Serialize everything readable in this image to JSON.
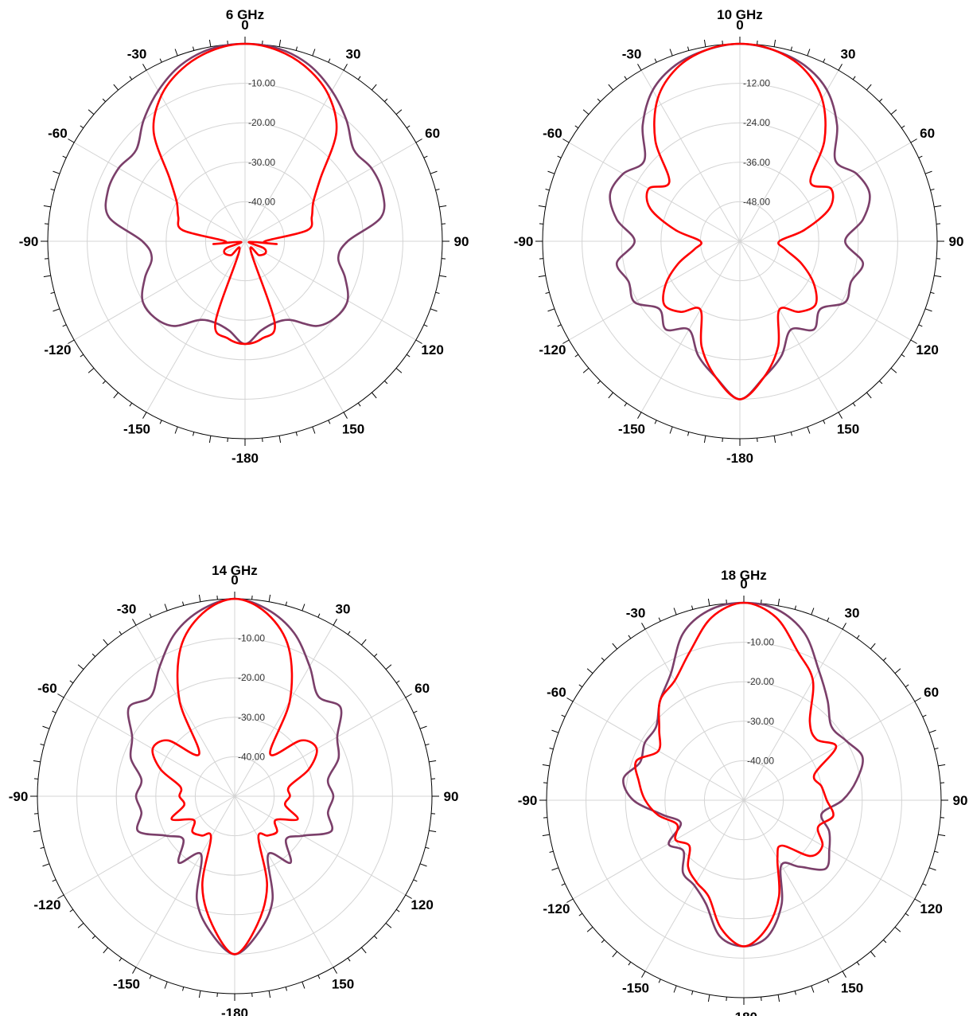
{
  "chart_data": [
    {
      "type": "polar-line",
      "title": "6 GHz",
      "angle_labels": [
        "0",
        "30",
        "60",
        "90",
        "120",
        "150",
        "-180",
        "-150",
        "-120",
        "-90",
        "-60",
        "-30"
      ],
      "radial_labels": [
        "-10.00",
        "-20.00",
        "-30.00",
        "-40.00"
      ],
      "rlim": [
        -50,
        0
      ],
      "grid": true,
      "series": [
        {
          "color": "#7B3F6A",
          "theta": [
            0,
            10,
            20,
            30,
            40,
            50,
            60,
            70,
            80,
            90,
            100,
            110,
            120,
            130,
            140,
            150,
            160,
            170,
            180,
            -170,
            -160,
            -150,
            -140,
            -130,
            -120,
            -110,
            -100,
            -90,
            -80,
            -70,
            -60,
            -50,
            -40,
            -30,
            -20,
            -10
          ],
          "r": [
            0,
            -0.5,
            -2.5,
            -6,
            -10,
            -14,
            -13,
            -13,
            -15,
            -24,
            -26,
            -23,
            -20,
            -20,
            -22,
            -27,
            -28,
            -27,
            -24,
            -27,
            -28,
            -27,
            -22,
            -20,
            -20,
            -23,
            -26,
            -24,
            -15,
            -13,
            -13,
            -14,
            -10,
            -6,
            -2.5,
            -0.5
          ]
        },
        {
          "color": "#FF0000",
          "theta": [
            0,
            10,
            20,
            30,
            40,
            50,
            60,
            70,
            80,
            90,
            95,
            100,
            110,
            120,
            135,
            150,
            160,
            170,
            180,
            -170,
            -160,
            -150,
            -135,
            -120,
            -110,
            -100,
            -95,
            -90,
            -80,
            -70,
            -60,
            -50,
            -40,
            -30,
            -20,
            -10
          ],
          "r": [
            0,
            -1,
            -3.5,
            -7.5,
            -14,
            -25,
            -30,
            -32,
            -34,
            -45,
            -42,
            -49,
            -45,
            -44,
            -45,
            -47,
            -28,
            -25,
            -24,
            -25,
            -28,
            -47,
            -45,
            -44,
            -45,
            -49,
            -42,
            -45,
            -34,
            -32,
            -30,
            -25,
            -14,
            -7.5,
            -3.5,
            -1
          ]
        }
      ]
    },
    {
      "type": "polar-line",
      "title": "10 GHz",
      "angle_labels": [
        "0",
        "30",
        "60",
        "90",
        "120",
        "150",
        "-180",
        "-150",
        "-120",
        "-90",
        "-60",
        "-30"
      ],
      "radial_labels": [
        "-12.00",
        "-24.00",
        "-36.00",
        "-48.00"
      ],
      "rlim": [
        -60,
        0
      ],
      "grid": true,
      "series": [
        {
          "color": "#7B3F6A",
          "theta": [
            0,
            10,
            20,
            30,
            40,
            50,
            60,
            70,
            80,
            90,
            100,
            110,
            120,
            130,
            140,
            150,
            160,
            170,
            180,
            -170,
            -160,
            -150,
            -140,
            -130,
            -120,
            -110,
            -100,
            -90,
            -80,
            -70,
            -60,
            -50,
            -40,
            -30,
            -20,
            -10
          ],
          "r": [
            0,
            -1,
            -3,
            -7,
            -14,
            -22,
            -19,
            -18,
            -22,
            -28,
            -22,
            -24,
            -23,
            -28,
            -25,
            -29,
            -23,
            -18,
            -12,
            -18,
            -23,
            -29,
            -25,
            -28,
            -23,
            -24,
            -22,
            -28,
            -22,
            -18,
            -19,
            -22,
            -14,
            -7,
            -3,
            -1
          ]
        },
        {
          "color": "#FF0000",
          "theta": [
            0,
            10,
            20,
            30,
            40,
            50,
            60,
            70,
            80,
            90,
            100,
            110,
            120,
            130,
            140,
            150,
            160,
            170,
            180,
            -170,
            -160,
            -150,
            -140,
            -130,
            -120,
            -110,
            -100,
            -90,
            -80,
            -70,
            -60,
            -50,
            -40,
            -30,
            -20,
            -10
          ],
          "r": [
            0,
            -1,
            -4,
            -10,
            -20,
            -32,
            -28,
            -31,
            -40,
            -48,
            -46,
            -40,
            -34,
            -30,
            -32,
            -36,
            -26,
            -18,
            -12,
            -18,
            -26,
            -36,
            -32,
            -30,
            -34,
            -40,
            -46,
            -48,
            -40,
            -31,
            -28,
            -32,
            -20,
            -10,
            -4,
            -1
          ]
        }
      ]
    },
    {
      "type": "polar-line",
      "title": "14 GHz",
      "angle_labels": [
        "0",
        "30",
        "60",
        "90",
        "120",
        "150",
        "-180",
        "-150",
        "-120",
        "-90",
        "-60",
        "-30"
      ],
      "radial_labels": [
        "-10.00",
        "-20.00",
        "-30.00",
        "-40.00"
      ],
      "rlim": [
        -50,
        0
      ],
      "grid": true,
      "series": [
        {
          "color": "#7B3F6A",
          "theta": [
            0,
            10,
            20,
            30,
            40,
            50,
            60,
            70,
            80,
            90,
            100,
            110,
            120,
            130,
            140,
            150,
            160,
            170,
            180,
            -170,
            -160,
            -150,
            -140,
            -130,
            -120,
            -110,
            -100,
            -90,
            -80,
            -70,
            -60,
            -50,
            -40,
            -30,
            -20,
            -10
          ],
          "r": [
            0,
            -2,
            -6,
            -12,
            -17,
            -15,
            -20,
            -22,
            -26,
            -25,
            -26,
            -24,
            -30,
            -33,
            -28,
            -33,
            -22,
            -15,
            -10,
            -15,
            -22,
            -33,
            -28,
            -33,
            -30,
            -24,
            -26,
            -25,
            -26,
            -22,
            -20,
            -15,
            -17,
            -12,
            -6,
            -2
          ]
        },
        {
          "color": "#FF0000",
          "theta": [
            0,
            10,
            20,
            30,
            40,
            50,
            60,
            70,
            80,
            90,
            100,
            110,
            120,
            130,
            140,
            150,
            160,
            170,
            180,
            -170,
            -160,
            -150,
            -140,
            -130,
            -120,
            -110,
            -100,
            -90,
            -80,
            -70,
            -60,
            -50,
            -40,
            -30,
            -20,
            -10
          ],
          "r": [
            0,
            -3,
            -10,
            -22,
            -36,
            -28,
            -26,
            -30,
            -36,
            -36,
            -37,
            -33,
            -38,
            -36,
            -37,
            -38,
            -26,
            -17,
            -10,
            -17,
            -26,
            -38,
            -37,
            -36,
            -38,
            -33,
            -37,
            -36,
            -36,
            -30,
            -26,
            -28,
            -36,
            -22,
            -10,
            -3
          ]
        }
      ]
    },
    {
      "type": "polar-line",
      "title": "18 GHz",
      "angle_labels": [
        "0",
        "30",
        "60",
        "90",
        "120",
        "150",
        "-180",
        "-150",
        "-120",
        "-90",
        "-60",
        "-30"
      ],
      "radial_labels": [
        "-10.00",
        "-20.00",
        "-30.00",
        "-40.00"
      ],
      "rlim": [
        -50,
        0
      ],
      "grid": true,
      "series": [
        {
          "color": "#7B3F6A",
          "theta": [
            0,
            10,
            20,
            30,
            40,
            50,
            60,
            70,
            80,
            90,
            100,
            110,
            120,
            130,
            140,
            150,
            160,
            170,
            180,
            -170,
            -160,
            -150,
            -140,
            -130,
            -120,
            -110,
            -100,
            -90,
            -80,
            -70,
            -60,
            -50,
            -40,
            -30,
            -20,
            -10
          ],
          "r": [
            0,
            -1,
            -5,
            -12,
            -17,
            -21,
            -20,
            -18,
            -21,
            -25,
            -30,
            -27,
            -25,
            -23,
            -28,
            -31,
            -22,
            -15,
            -13,
            -15,
            -22,
            -25,
            -26,
            -30,
            -28,
            -33,
            -29,
            -22,
            -19,
            -22,
            -21,
            -21,
            -17,
            -13,
            -5,
            -1
          ]
        },
        {
          "color": "#FF0000",
          "theta": [
            0,
            10,
            20,
            30,
            40,
            50,
            60,
            70,
            80,
            90,
            100,
            110,
            120,
            130,
            140,
            150,
            160,
            170,
            180,
            -170,
            -160,
            -150,
            -140,
            -130,
            -120,
            -110,
            -100,
            -90,
            -80,
            -70,
            -60,
            -50,
            -40,
            -30,
            -20,
            -10
          ],
          "r": [
            0,
            -3,
            -10,
            -15,
            -24,
            -26,
            -23,
            -31,
            -30,
            -29,
            -27,
            -30,
            -27,
            -28,
            -35,
            -33,
            -24,
            -17,
            -13,
            -17,
            -24,
            -26,
            -28,
            -32,
            -30,
            -32,
            -28,
            -25,
            -23,
            -21,
            -25,
            -22,
            -17,
            -15,
            -10,
            -3
          ]
        }
      ]
    }
  ]
}
